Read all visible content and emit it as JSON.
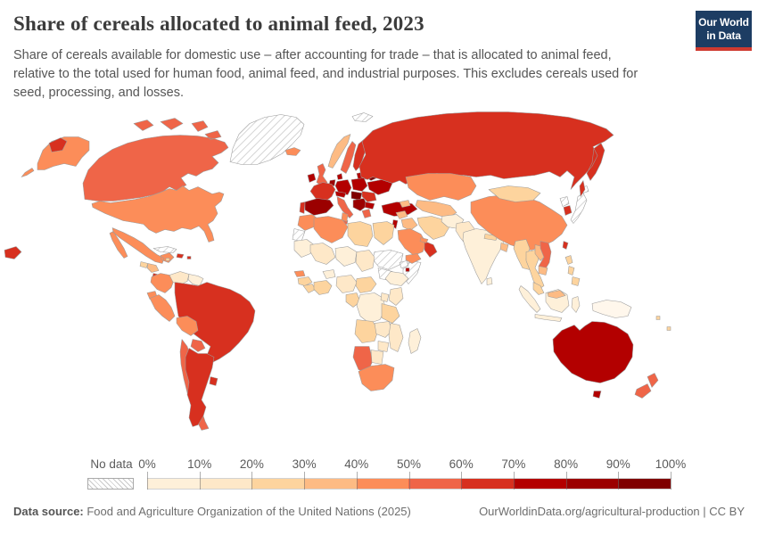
{
  "header": {
    "title": "Share of cereals allocated to animal feed, 2023",
    "subtitle": "Share of cereals available for domestic use – after accounting for trade – that is allocated to animal feed, relative to the total used for human food, animal feed, and industrial purposes. This excludes cereals used for seed, processing, and losses."
  },
  "logo": {
    "line1": "Our World",
    "line2": "in Data",
    "bg_color": "#1d3d63",
    "bar_color": "#cf3a30"
  },
  "chart_data": {
    "type": "heatmap",
    "subtype": "choropleth-world-map",
    "title": "Share of cereals allocated to animal feed, 2023",
    "year": "2023",
    "unit": "%",
    "legend": {
      "no_data_label": "No data",
      "tick_labels": [
        "0%",
        "10%",
        "20%",
        "30%",
        "40%",
        "50%",
        "60%",
        "70%",
        "80%",
        "90%",
        "100%"
      ],
      "bin_colors": [
        "#fef0d9",
        "#fee8c8",
        "#fdd49e",
        "#fdbb84",
        "#fc8d59",
        "#ef6548",
        "#d7301f",
        "#b30000",
        "#9b0000",
        "#7f0000"
      ]
    },
    "regions": {
      "canada": "#ef6548",
      "united_states": "#fc8d59",
      "mexico": "#fc8d59",
      "guatemala": "#fdd49e",
      "honduras_nicaragua": "#fdbb84",
      "costa_rica_panama": "#d7301f",
      "hispaniola": "#d7301f",
      "puerto_rico": "#d7301f",
      "jamaica": "#fdd49e",
      "colombia": "#fc8d59",
      "venezuela": "#fee8c8",
      "guyanas": "#fef0d9",
      "ecuador": "#fc8d59",
      "peru": "#fc8d59",
      "brazil": "#d7301f",
      "bolivia": "#fc8d59",
      "paraguay": "#ef6548",
      "chile": "#ef6548",
      "argentina": "#d7301f",
      "uruguay": "#d7301f",
      "iceland": "#fc8d59",
      "ireland": "#b30000",
      "united_kingdom": "#ef6548",
      "norway": "#fdbb84",
      "sweden": "#ef6548",
      "finland": "#d7301f",
      "baltics": "#b30000",
      "denmark": "#b30000",
      "germany": "#b30000",
      "benelux": "#9b0000",
      "poland": "#b30000",
      "belarus": "#7f0000",
      "ukraine": "#b30000",
      "france": "#d7301f",
      "spain": "#9b0000",
      "portugal": "#d7301f",
      "italy": "#ef6548",
      "austria_switzerland": "#b30000",
      "czech_hungary": "#7f0000",
      "balkans": "#9b0000",
      "romania": "#d7301f",
      "bulgaria": "#b30000",
      "greece": "#ef6548",
      "turkey": "#b30000",
      "russia": "#d7301f",
      "kazakhstan": "#fc8d59",
      "central_asia": "#fdbb84",
      "caucasus": "#fdbb84",
      "syria": "#fdbb84",
      "iraq": "#fdbb84",
      "israel_jordan": "#b30000",
      "iran": "#fdd49e",
      "saudi_arabia": "#fc8d59",
      "yemen": "#fc8d59",
      "oman": "#d7301f",
      "uae_qatar": "#fc8d59",
      "morocco": "#fc8d59",
      "algeria": "#fc8d59",
      "tunisia": "#fc8d59",
      "libya": "#fdd49e",
      "egypt": "#fdd49e",
      "mauritania": "#fef0d9",
      "mali": "#fee8c8",
      "niger": "#fef0d9",
      "chad": "#fee8c8",
      "ethiopia": "#fef0d9",
      "djibouti": "#b30000",
      "senegal": "#fc8d59",
      "guinea": "#fdd49e",
      "sierra_leone_liberia": "#fdd49e",
      "ivory_coast_ghana": "#fdd49e",
      "burkina_faso": "#fef0d9",
      "nigeria": "#fee8c8",
      "cameroon_car": "#fdd49e",
      "gabon_congo": "#fdd49e",
      "dr_congo": "#fef0d9",
      "uganda": "#fee8c8",
      "kenya": "#fee8c8",
      "tanzania": "#fdd49e",
      "angola": "#fdd49e",
      "zambia": "#fee8c8",
      "mozambique": "#fee8c8",
      "zimbabwe": "#fee8c8",
      "namibia": "#ef6548",
      "botswana": "#fee8c8",
      "south_africa": "#fc8d59",
      "madagascar": "#fef0d9",
      "afghanistan": "#fef0d9",
      "pakistan": "#fee8c8",
      "india": "#fef0d9",
      "nepal": "#fdd49e",
      "bangladesh": "#fdbb84",
      "sri_lanka": "#fef0d9",
      "china": "#fc8d59",
      "mongolia": "#fdd49e",
      "myanmar": "#fdd49e",
      "thailand": "#fdd49e",
      "laos": "#fdbb84",
      "vietnam": "#ef6548",
      "cambodia": "#fdbb84",
      "malaysia": "#fdd49e",
      "indonesia": "#fef0d9",
      "borneo_malaysia": "#fdbb84",
      "new_guinea": "#fff7ec",
      "philippines": "#fdd49e",
      "taiwan": "#d7301f",
      "south_korea": "#d7301f",
      "australia": "#b30000",
      "new_zealand": "#ef6548",
      "pacific_islands": "#fdd49e"
    },
    "no_data_regions": [
      "Greenland",
      "Cuba",
      "Western Sahara",
      "Sudan",
      "South Sudan",
      "Somalia",
      "Eritrea",
      "North Korea",
      "Japan",
      "Svalbard"
    ]
  },
  "footer": {
    "source_label": "Data source:",
    "source_text": " Food and Agriculture Organization of the United Nations (2025)",
    "link_text": "OurWorldinData.org/agricultural-production | CC BY"
  }
}
